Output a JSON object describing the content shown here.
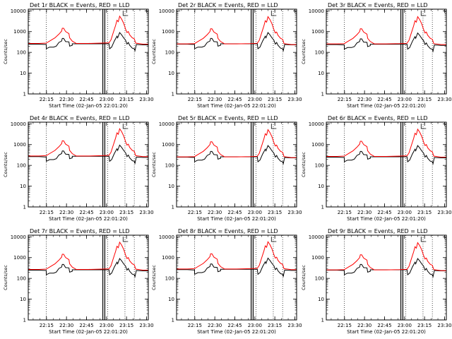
{
  "chart_data": {
    "type": "line",
    "ylabel": "Counts/sec",
    "xlabel": "Start Time (02-Jan-05 22:01:20)",
    "yscale": "log",
    "ylim": [
      1,
      12000
    ],
    "y_ticks": [
      {
        "value": 1,
        "label": "1"
      },
      {
        "value": 10,
        "label": "10"
      },
      {
        "value": 100,
        "label": "100"
      },
      {
        "value": 1000,
        "label": "1000"
      },
      {
        "value": 10000,
        "label": "10000"
      }
    ],
    "xlim_minutes": [
      0,
      90
    ],
    "x_ticks": [
      {
        "label": "22:15",
        "minutes": 13.67
      },
      {
        "label": "22:30",
        "minutes": 28.67
      },
      {
        "label": "22:45",
        "minutes": 43.67
      },
      {
        "label": "23:00",
        "minutes": 58.67
      },
      {
        "label": "23:15",
        "minutes": 73.67
      },
      {
        "label": "23:30",
        "minutes": 88.67
      }
    ],
    "dotted_lines_minutes": [
      13.5,
      59.5,
      72.5,
      79.5
    ],
    "solid_lines_minutes": [
      55.9,
      57.4
    ],
    "legend": "top-right",
    "colors": {
      "events": "#000000",
      "lld": "#ff0000"
    },
    "series_labels": [
      "Events",
      "LLD"
    ],
    "panels": [
      {
        "title": "Det 1r BLACK = Events, RED = LLD",
        "events_scale": 1.0,
        "lld_scale": 1.0
      },
      {
        "title": "Det 2r BLACK = Events, RED = LLD",
        "events_scale": 1.0,
        "lld_scale": 0.95
      },
      {
        "title": "Det 3r BLACK = Events, RED = LLD",
        "events_scale": 0.95,
        "lld_scale": 0.95
      },
      {
        "title": "Det 4r BLACK = Events, RED = LLD",
        "events_scale": 1.05,
        "lld_scale": 1.05
      },
      {
        "title": "Det 5r BLACK = Events, RED = LLD",
        "events_scale": 1.0,
        "lld_scale": 0.95
      },
      {
        "title": "Det 6r BLACK = Events, RED = LLD",
        "events_scale": 1.0,
        "lld_scale": 1.0
      },
      {
        "title": "Det 7r BLACK = Events, RED = LLD",
        "events_scale": 1.0,
        "lld_scale": 1.0
      },
      {
        "title": "Det 8r BLACK = Events, RED = LLD",
        "events_scale": 1.05,
        "lld_scale": 1.05
      },
      {
        "title": "Det 9r BLACK = Events, RED = LLD",
        "events_scale": 1.0,
        "lld_scale": 0.95
      }
    ],
    "events_series": [
      {
        "minutes": 0,
        "value": 250
      },
      {
        "minutes": 8,
        "value": 250
      },
      {
        "minutes": 13.5,
        "value": 240
      },
      {
        "minutes": 13.5,
        "value": 150
      },
      {
        "minutes": 16,
        "value": 180
      },
      {
        "minutes": 19,
        "value": 180
      },
      {
        "minutes": 21,
        "value": 200
      },
      {
        "minutes": 23,
        "value": 300
      },
      {
        "minutes": 25,
        "value": 350
      },
      {
        "minutes": 25.5,
        "value": 470
      },
      {
        "minutes": 26.5,
        "value": 470
      },
      {
        "minutes": 28,
        "value": 330
      },
      {
        "minutes": 30.5,
        "value": 320
      },
      {
        "minutes": 31,
        "value": 200
      },
      {
        "minutes": 33,
        "value": 220
      },
      {
        "minutes": 33,
        "value": 260
      },
      {
        "minutes": 36,
        "value": 260
      },
      {
        "minutes": 45,
        "value": 260
      },
      {
        "minutes": 55,
        "value": 260
      },
      {
        "minutes": 60.5,
        "value": 260
      },
      {
        "minutes": 61,
        "value": 150
      },
      {
        "minutes": 62.5,
        "value": 180
      },
      {
        "minutes": 64.5,
        "value": 350
      },
      {
        "minutes": 66.5,
        "value": 600
      },
      {
        "minutes": 67,
        "value": 500
      },
      {
        "minutes": 68.5,
        "value": 900
      },
      {
        "minutes": 70,
        "value": 700
      },
      {
        "minutes": 71.5,
        "value": 500
      },
      {
        "minutes": 73,
        "value": 380
      },
      {
        "minutes": 74,
        "value": 250
      },
      {
        "minutes": 75,
        "value": 300
      },
      {
        "minutes": 76,
        "value": 220
      },
      {
        "minutes": 78,
        "value": 160
      },
      {
        "minutes": 79.5,
        "value": 150
      },
      {
        "minutes": 80,
        "value": 120
      },
      {
        "minutes": 81,
        "value": 240
      },
      {
        "minutes": 86,
        "value": 230
      },
      {
        "minutes": 90,
        "value": 230
      }
    ],
    "lld_series": [
      {
        "minutes": 0,
        "value": 270
      },
      {
        "minutes": 8,
        "value": 270
      },
      {
        "minutes": 13.5,
        "value": 280
      },
      {
        "minutes": 16,
        "value": 350
      },
      {
        "minutes": 20,
        "value": 500
      },
      {
        "minutes": 23,
        "value": 750
      },
      {
        "minutes": 25,
        "value": 1050
      },
      {
        "minutes": 25.5,
        "value": 1450
      },
      {
        "minutes": 26.5,
        "value": 1450
      },
      {
        "minutes": 28,
        "value": 1000
      },
      {
        "minutes": 30.5,
        "value": 800
      },
      {
        "minutes": 31,
        "value": 500
      },
      {
        "minutes": 33,
        "value": 350
      },
      {
        "minutes": 36,
        "value": 270
      },
      {
        "minutes": 45,
        "value": 270
      },
      {
        "minutes": 55,
        "value": 280
      },
      {
        "minutes": 60.5,
        "value": 290
      },
      {
        "minutes": 62,
        "value": 400
      },
      {
        "minutes": 63.5,
        "value": 800
      },
      {
        "minutes": 65.5,
        "value": 2000
      },
      {
        "minutes": 66.5,
        "value": 3500
      },
      {
        "minutes": 67.5,
        "value": 3000
      },
      {
        "minutes": 68.5,
        "value": 5500
      },
      {
        "minutes": 70,
        "value": 4000
      },
      {
        "minutes": 71.5,
        "value": 2500
      },
      {
        "minutes": 73,
        "value": 1300
      },
      {
        "minutes": 74,
        "value": 900
      },
      {
        "minutes": 75,
        "value": 1000
      },
      {
        "minutes": 76,
        "value": 700
      },
      {
        "minutes": 78,
        "value": 500
      },
      {
        "minutes": 79.5,
        "value": 450
      },
      {
        "minutes": 80.5,
        "value": 280
      },
      {
        "minutes": 86,
        "value": 250
      },
      {
        "minutes": 90,
        "value": 250
      }
    ]
  }
}
